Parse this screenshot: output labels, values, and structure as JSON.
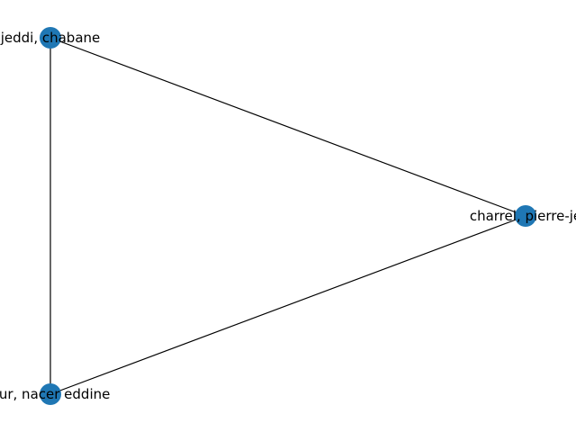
{
  "graph": {
    "node_color": "#1f77b4",
    "edge_color": "#000000",
    "label_color": "#000000",
    "background": "#ffffff",
    "nodes": [
      {
        "id": "n1",
        "label": "jeddi, chabane"
      },
      {
        "id": "n2",
        "label": "charrel, pierre-je"
      },
      {
        "id": "n3",
        "label": "our, nacer eddine"
      }
    ],
    "edges": [
      {
        "source": "n1",
        "target": "n2"
      },
      {
        "source": "n1",
        "target": "n3"
      },
      {
        "source": "n3",
        "target": "n2"
      }
    ]
  }
}
